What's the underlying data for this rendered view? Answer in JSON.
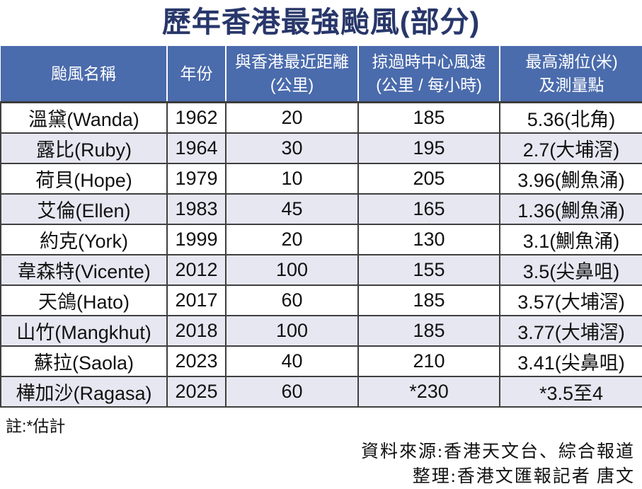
{
  "title": "歷年香港最強颱風(部分)",
  "colors": {
    "title_text": "#28376a",
    "header_bg": "#4a6bac",
    "header_text": "#ffffff",
    "row_alt_bg": "#e7e7f2",
    "border": "#3f3f3f"
  },
  "chart_data": {
    "type": "table",
    "title": "歷年香港最強颱風(部分)",
    "columns": [
      {
        "label": "颱風名稱",
        "sub": ""
      },
      {
        "label": "年份",
        "sub": ""
      },
      {
        "label": "與香港最近距離",
        "sub": "(公里)"
      },
      {
        "label": "掠過時中心風速",
        "sub": "(公里 / 每小時)"
      },
      {
        "label": "最高潮位(米)",
        "sub": "及測量點"
      }
    ],
    "rows": [
      {
        "name": "溫黛(Wanda)",
        "year": "1962",
        "distance_km": "20",
        "wind_kmh": "185",
        "tide_m": "5.36(北角)"
      },
      {
        "name": "露比(Ruby)",
        "year": "1964",
        "distance_km": "30",
        "wind_kmh": "195",
        "tide_m": "2.7(大埔滘)"
      },
      {
        "name": "荷貝(Hope)",
        "year": "1979",
        "distance_km": "10",
        "wind_kmh": "205",
        "tide_m": "3.96(鰂魚涌)"
      },
      {
        "name": "艾倫(Ellen)",
        "year": "1983",
        "distance_km": "45",
        "wind_kmh": "165",
        "tide_m": "1.36(鰂魚涌)"
      },
      {
        "name": "約克(York)",
        "year": "1999",
        "distance_km": "20",
        "wind_kmh": "130",
        "tide_m": "3.1(鰂魚涌)"
      },
      {
        "name": "韋森特(Vicente)",
        "year": "2012",
        "distance_km": "100",
        "wind_kmh": "155",
        "tide_m": "3.5(尖鼻咀)"
      },
      {
        "name": "天鴿(Hato)",
        "year": "2017",
        "distance_km": "60",
        "wind_kmh": "185",
        "tide_m": "3.57(大埔滘)"
      },
      {
        "name": "山竹(Mangkhut)",
        "year": "2018",
        "distance_km": "100",
        "wind_kmh": "185",
        "tide_m": "3.77(大埔滘)"
      },
      {
        "name": "蘇拉(Saola)",
        "year": "2023",
        "distance_km": "40",
        "wind_kmh": "210",
        "tide_m": "3.41(尖鼻咀)"
      },
      {
        "name": "樺加沙(Ragasa)",
        "year": "2025",
        "distance_km": "60",
        "wind_kmh": "*230",
        "tide_m": "*3.5至4"
      }
    ],
    "note": "註:*估計",
    "source": "資料來源:香港天文台、綜合報道",
    "credit": "整理:香港文匯報記者 唐文"
  }
}
